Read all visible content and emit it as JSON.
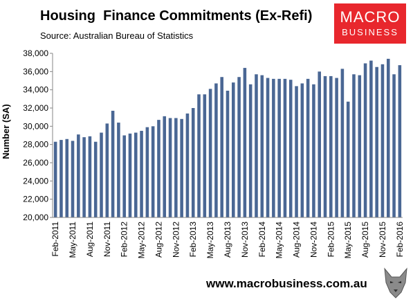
{
  "title": "Housing  Finance Commitments (Ex-Refi)",
  "source": "Source: Australian Bureau of Statistics",
  "logo": {
    "line1": "MACRO",
    "line2": "BUSINESS"
  },
  "footer_url": "www.macrobusiness.com.au",
  "colors": {
    "bar": "#4a6794",
    "axis": "#868686",
    "logo_bg": "#e8272d"
  },
  "icons": {
    "logo": "macrobusiness-logo",
    "mascot": "wolf-icon"
  },
  "chart_data": {
    "type": "bar",
    "title": "Housing  Finance Commitments (Ex-Refi)",
    "ylabel": "Number (SA)",
    "xlabel": "",
    "ylim": [
      20000,
      38000
    ],
    "y_ticks": [
      "20,000",
      "22,000",
      "24,000",
      "26,000",
      "28,000",
      "30,000",
      "32,000",
      "34,000",
      "36,000",
      "38,000"
    ],
    "grid": false,
    "x_tick_labels": [
      "Feb-2011",
      "May-2011",
      "Aug-2011",
      "Nov-2011",
      "Feb-2012",
      "May-2012",
      "Aug-2012",
      "Nov-2012",
      "Feb-2013",
      "May-2013",
      "Aug-2013",
      "Nov-2013",
      "Feb-2014",
      "May-2014",
      "Aug-2014",
      "Nov-2014",
      "Feb-2015",
      "May-2015",
      "Aug-2015",
      "Nov-2015",
      "Feb-2016"
    ],
    "categories": [
      "Feb-2011",
      "Mar-2011",
      "Apr-2011",
      "May-2011",
      "Jun-2011",
      "Jul-2011",
      "Aug-2011",
      "Sep-2011",
      "Oct-2011",
      "Nov-2011",
      "Dec-2011",
      "Jan-2012",
      "Feb-2012",
      "Mar-2012",
      "Apr-2012",
      "May-2012",
      "Jun-2012",
      "Jul-2012",
      "Aug-2012",
      "Sep-2012",
      "Oct-2012",
      "Nov-2012",
      "Dec-2012",
      "Jan-2013",
      "Feb-2013",
      "Mar-2013",
      "Apr-2013",
      "May-2013",
      "Jun-2013",
      "Jul-2013",
      "Aug-2013",
      "Sep-2013",
      "Oct-2013",
      "Nov-2013",
      "Dec-2013",
      "Jan-2014",
      "Feb-2014",
      "Mar-2014",
      "Apr-2014",
      "May-2014",
      "Jun-2014",
      "Jul-2014",
      "Aug-2014",
      "Sep-2014",
      "Oct-2014",
      "Nov-2014",
      "Dec-2014",
      "Jan-2015",
      "Feb-2015",
      "Mar-2015",
      "Apr-2015",
      "May-2015",
      "Jun-2015",
      "Jul-2015",
      "Aug-2015",
      "Sep-2015",
      "Oct-2015",
      "Nov-2015",
      "Dec-2015",
      "Jan-2016",
      "Feb-2016"
    ],
    "values": [
      28300,
      28500,
      28600,
      28400,
      29100,
      28800,
      28900,
      28300,
      29300,
      30300,
      31700,
      30400,
      29000,
      29200,
      29300,
      29500,
      29900,
      30000,
      30700,
      31100,
      30900,
      30900,
      30800,
      31400,
      32000,
      33500,
      33500,
      34100,
      34700,
      35400,
      33900,
      34800,
      35400,
      36400,
      34600,
      35700,
      35600,
      35300,
      35200,
      35200,
      35200,
      35100,
      34400,
      34700,
      35200,
      34600,
      36000,
      35500,
      35500,
      35300,
      36300,
      32700,
      35700,
      35600,
      36900,
      37200,
      36500,
      36800,
      37400,
      35700,
      36700
    ]
  }
}
